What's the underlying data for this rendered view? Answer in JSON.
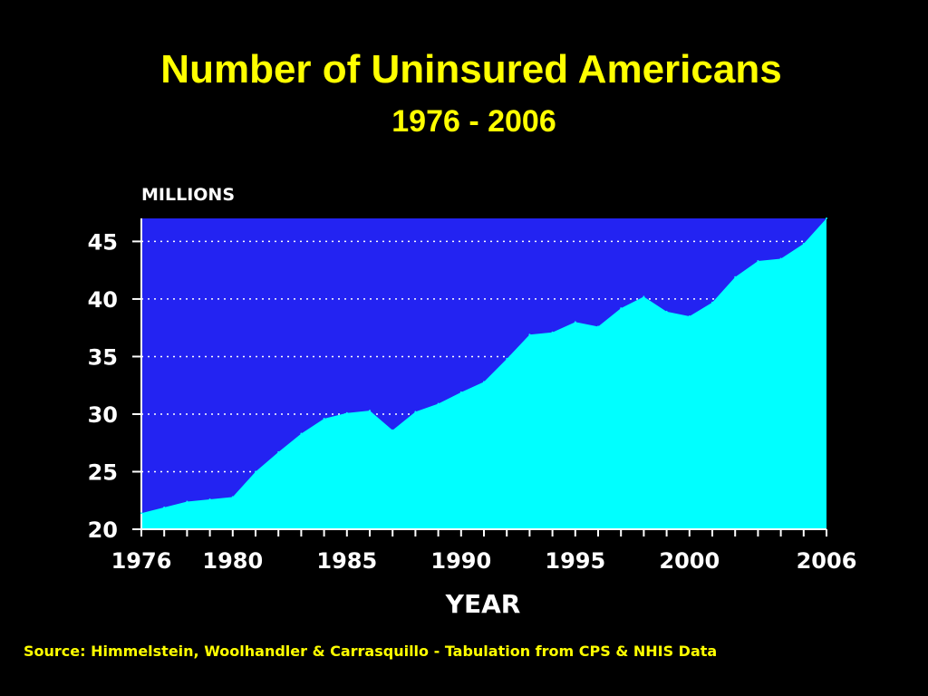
{
  "page": {
    "title": "Number of Uninsured Americans",
    "subtitle": "1976 - 2006",
    "source": "Source: Himmelstein, Woolhandler & Carrasquillo - Tabulation from CPS & NHIS Data"
  },
  "colors": {
    "background": "#000000",
    "text": "#ffff00",
    "plot_background": "#2323f2",
    "area_fill": "#00ffff",
    "gridline": "#ffffff",
    "axis_label": "#ffffff"
  },
  "chart_data": {
    "type": "area",
    "title": "Number of Uninsured Americans",
    "subtitle": "1976 - 2006",
    "ylabel": "MILLIONS",
    "xlabel": "YEAR",
    "xlim": [
      1976,
      2006
    ],
    "ylim": [
      20,
      47
    ],
    "x_ticks": [
      1976,
      1980,
      1985,
      1990,
      1995,
      2000,
      2006
    ],
    "y_ticks": [
      20,
      25,
      30,
      35,
      40,
      45
    ],
    "grid": "horizontal dotted",
    "legend": "none",
    "x": [
      1976,
      1977,
      1978,
      1979,
      1980,
      1981,
      1982,
      1983,
      1984,
      1985,
      1986,
      1987,
      1988,
      1989,
      1990,
      1991,
      1992,
      1993,
      1994,
      1995,
      1996,
      1997,
      1998,
      1999,
      2000,
      2001,
      2002,
      2003,
      2004,
      2005,
      2006
    ],
    "values": [
      21.4,
      21.9,
      22.4,
      22.6,
      22.8,
      25.0,
      26.7,
      28.3,
      29.6,
      30.1,
      30.3,
      28.6,
      30.2,
      30.9,
      31.9,
      32.8,
      34.8,
      36.9,
      37.1,
      38.0,
      37.6,
      39.2,
      40.2,
      38.9,
      38.5,
      39.7,
      41.9,
      43.3,
      43.5,
      44.8,
      47.0
    ]
  }
}
